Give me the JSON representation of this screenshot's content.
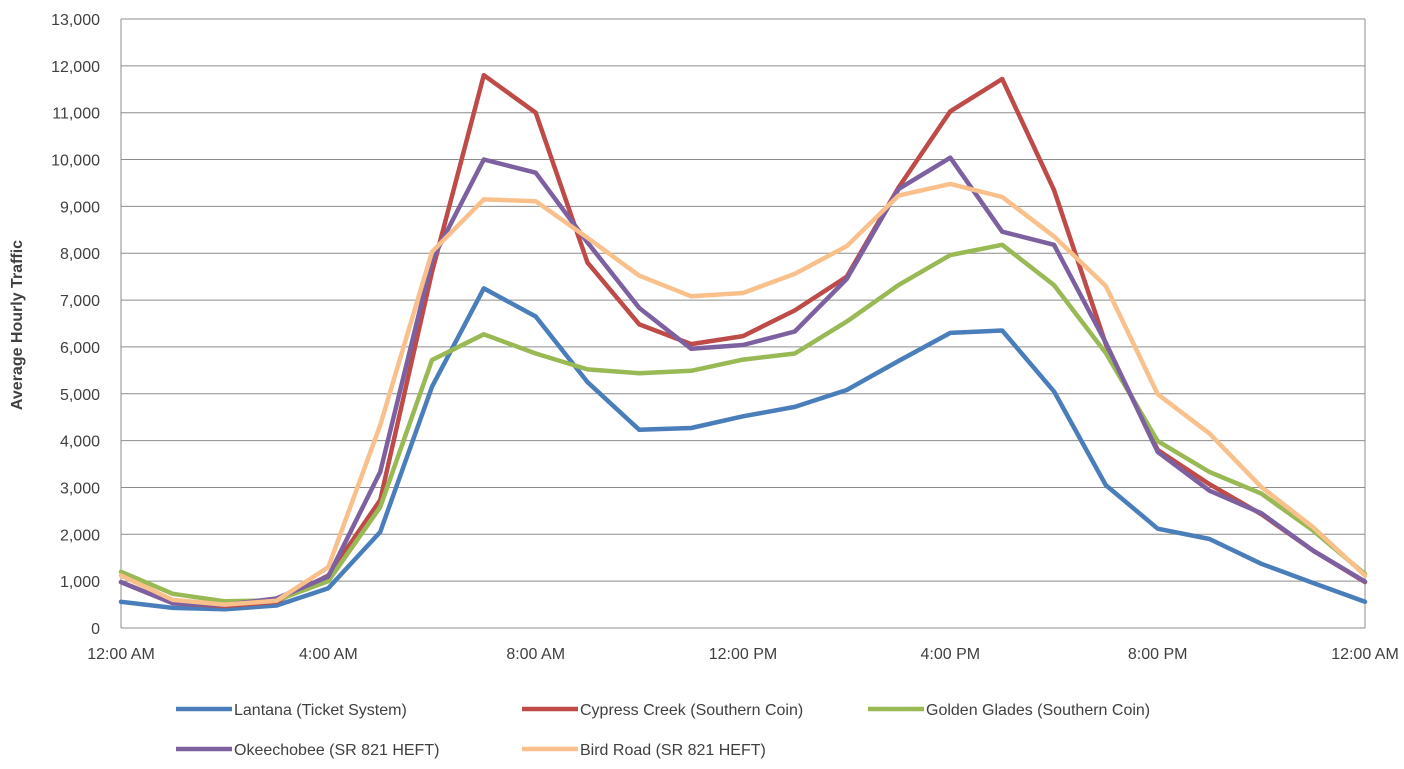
{
  "chart_data": {
    "type": "line",
    "title": "",
    "xlabel": "",
    "ylabel": "Average Hourly Traffic",
    "ylim": [
      0,
      13000
    ],
    "y_ticks": [
      "0",
      "1,000",
      "2,000",
      "3,000",
      "4,000",
      "5,000",
      "6,000",
      "7,000",
      "8,000",
      "9,000",
      "10,000",
      "11,000",
      "12,000",
      "13,000"
    ],
    "x_tick_labels": [
      "12:00 AM",
      "4:00 AM",
      "8:00 AM",
      "12:00 PM",
      "4:00 PM",
      "8:00 PM",
      "12:00 AM"
    ],
    "x_hours": [
      0,
      1,
      2,
      3,
      4,
      5,
      6,
      7,
      8,
      9,
      10,
      11,
      12,
      13,
      14,
      15,
      16,
      17,
      18,
      19,
      20,
      21,
      22,
      23,
      24
    ],
    "grid": "horizontal",
    "legend_position": "bottom",
    "series": [
      {
        "name": "Lantana (Ticket System)",
        "color": "#4a7ebb",
        "values": [
          560,
          430,
          400,
          480,
          850,
          2050,
          5150,
          7250,
          6650,
          5250,
          4230,
          4270,
          4520,
          4720,
          5080,
          5700,
          6300,
          6350,
          5050,
          3050,
          2120,
          1900,
          1370,
          960,
          560
        ]
      },
      {
        "name": "Cypress Creek (Southern Coin)",
        "color": "#be4b48",
        "values": [
          980,
          530,
          470,
          560,
          1120,
          2730,
          7600,
          11800,
          11000,
          7800,
          6480,
          6060,
          6230,
          6780,
          7500,
          9400,
          11030,
          11720,
          9350,
          6060,
          3800,
          3070,
          2430,
          1650,
          980
        ]
      },
      {
        "name": "Golden Glades (Southern Coin)",
        "color": "#98b954",
        "values": [
          1200,
          730,
          570,
          590,
          1000,
          2580,
          5720,
          6270,
          5860,
          5520,
          5440,
          5490,
          5730,
          5860,
          6540,
          7320,
          7960,
          8180,
          7320,
          5870,
          3990,
          3330,
          2870,
          2080,
          1150
        ]
      },
      {
        "name": "Okeechobee (SR 821 HEFT)",
        "color": "#7d60a0",
        "values": [
          980,
          530,
          490,
          630,
          1100,
          3330,
          7850,
          10000,
          9720,
          8230,
          6830,
          5960,
          6040,
          6330,
          7450,
          9370,
          10040,
          8460,
          8180,
          6090,
          3760,
          2930,
          2450,
          1650,
          990
        ]
      },
      {
        "name": "Bird Road (SR 821 HEFT)",
        "color": "#f9c08c",
        "values": [
          1120,
          600,
          500,
          580,
          1300,
          4330,
          8030,
          9150,
          9110,
          8330,
          7520,
          7080,
          7150,
          7560,
          8150,
          9230,
          9480,
          9200,
          8360,
          7300,
          4990,
          4150,
          3010,
          2150,
          1120
        ]
      }
    ]
  }
}
